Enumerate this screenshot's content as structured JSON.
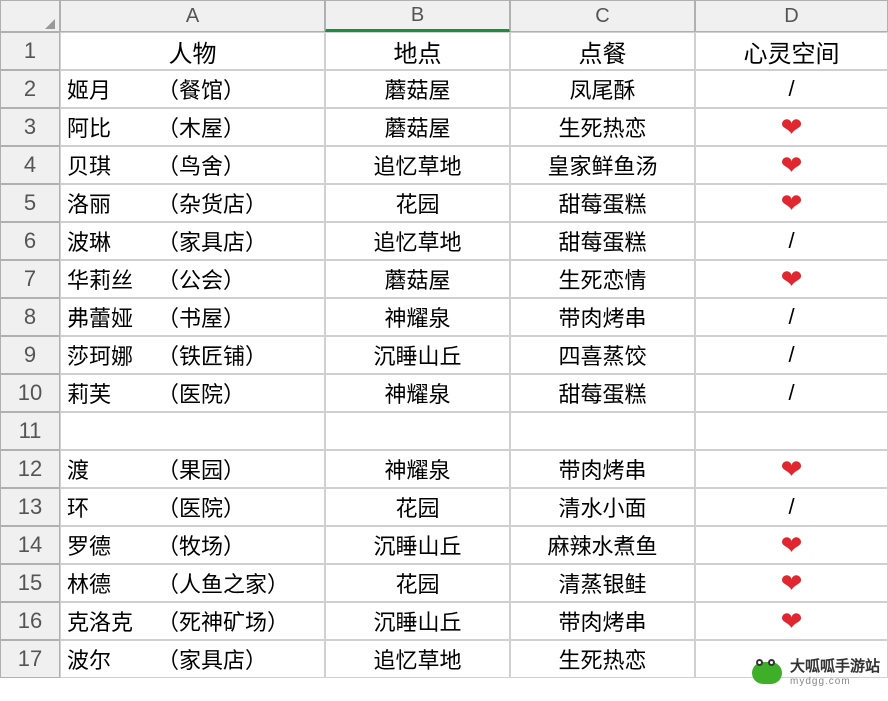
{
  "columns": [
    "A",
    "B",
    "C",
    "D"
  ],
  "headers": {
    "A": "人物",
    "B": "地点",
    "C": "点餐",
    "D": "心灵空间"
  },
  "selected_col": "B",
  "rows": [
    {
      "n": 1,
      "type": "header"
    },
    {
      "n": 2,
      "name": "姬月",
      "place": "（餐馆）",
      "B": "蘑菇屋",
      "C": "凤尾酥",
      "D": "/"
    },
    {
      "n": 3,
      "name": "阿比",
      "place": "（木屋）",
      "B": "蘑菇屋",
      "C": "生死热恋",
      "D": "❤"
    },
    {
      "n": 4,
      "name": "贝琪",
      "place": "（鸟舍）",
      "B": "追忆草地",
      "C": "皇家鲜鱼汤",
      "D": "❤"
    },
    {
      "n": 5,
      "name": "洛丽",
      "place": "（杂货店）",
      "B": "花园",
      "C": "甜莓蛋糕",
      "D": "❤"
    },
    {
      "n": 6,
      "name": "波琳",
      "place": "（家具店）",
      "B": "追忆草地",
      "C": "甜莓蛋糕",
      "D": "/"
    },
    {
      "n": 7,
      "name": "华莉丝",
      "place": "（公会）",
      "B": "蘑菇屋",
      "C": "生死恋情",
      "D": "❤"
    },
    {
      "n": 8,
      "name": "弗蕾娅",
      "place": "（书屋）",
      "B": "神耀泉",
      "C": "带肉烤串",
      "D": "/"
    },
    {
      "n": 9,
      "name": "莎珂娜",
      "place": "（铁匠铺）",
      "B": "沉睡山丘",
      "C": "四喜蒸饺",
      "D": "/"
    },
    {
      "n": 10,
      "name": "莉芙",
      "place": "（医院）",
      "B": "神耀泉",
      "C": "甜莓蛋糕",
      "D": "/"
    },
    {
      "n": 11,
      "name": "",
      "place": "",
      "B": "",
      "C": "",
      "D": ""
    },
    {
      "n": 12,
      "name": "渡",
      "place": "（果园）",
      "B": "神耀泉",
      "C": "带肉烤串",
      "D": "❤"
    },
    {
      "n": 13,
      "name": "环",
      "place": "（医院）",
      "B": "花园",
      "C": "清水小面",
      "D": "/"
    },
    {
      "n": 14,
      "name": "罗德",
      "place": "（牧场）",
      "B": "沉睡山丘",
      "C": "麻辣水煮鱼",
      "D": "❤"
    },
    {
      "n": 15,
      "name": "林德",
      "place": "（人鱼之家）",
      "B": "花园",
      "C": "清蒸银鲑",
      "D": "❤"
    },
    {
      "n": 16,
      "name": "克洛克",
      "place": "（死神矿场）",
      "B": "沉睡山丘",
      "C": "带肉烤串",
      "D": "❤"
    },
    {
      "n": 17,
      "name": "波尔",
      "place": "（家具店）",
      "B": "追忆草地",
      "C": "生死热恋",
      "D": ""
    }
  ],
  "watermark": {
    "title": "大呱呱手游站",
    "sub": "mydgg.com"
  },
  "colors": {
    "heart": "#e0262f",
    "grid": "#d0d0d0",
    "headbg": "#f0f0f0",
    "select": "#1a8f3a"
  }
}
